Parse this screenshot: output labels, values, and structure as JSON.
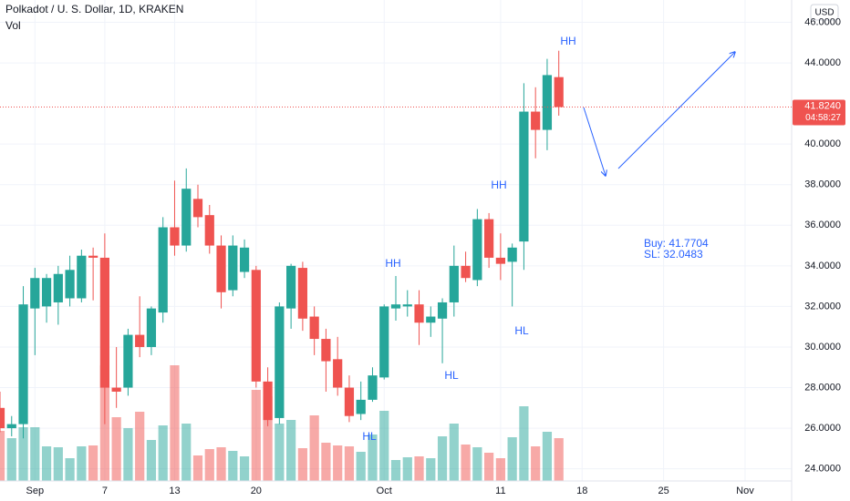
{
  "chart_data": {
    "type": "candlestick",
    "title": "Polkadot / U. S. Dollar, 1D, KRAKEN",
    "volume_label": "Vol",
    "currency": "USD",
    "up_color": "#26a69a",
    "down_color": "#ef5350",
    "x": [
      "08-29",
      "08-30",
      "08-31",
      "09-01",
      "09-02",
      "09-03",
      "09-04",
      "09-05",
      "09-06",
      "09-07",
      "09-08",
      "09-09",
      "09-10",
      "09-11",
      "09-12",
      "09-13",
      "09-14",
      "09-15",
      "09-16",
      "09-17",
      "09-18",
      "09-19",
      "09-20",
      "09-21",
      "09-22",
      "09-23",
      "09-24",
      "09-25",
      "09-26",
      "09-27",
      "09-28",
      "09-29",
      "09-30",
      "10-01",
      "10-02",
      "10-03",
      "10-04",
      "10-05",
      "10-06",
      "10-07",
      "10-08",
      "10-09",
      "10-10",
      "10-11",
      "10-12",
      "10-13",
      "10-14",
      "10-15",
      "10-16"
    ],
    "open": [
      27.0,
      26.0,
      26.2,
      31.9,
      32.0,
      32.2,
      32.4,
      32.4,
      34.5,
      34.4,
      28.0,
      28.0,
      30.6,
      30.0,
      31.7,
      35.9,
      35.0,
      37.3,
      36.5,
      35.0,
      32.8,
      33.7,
      33.8,
      28.3,
      26.5,
      31.9,
      33.9,
      31.5,
      30.4,
      29.4,
      28.0,
      26.7,
      27.4,
      28.5,
      31.9,
      32.0,
      32.1,
      31.2,
      31.4,
      32.2,
      34.0,
      33.3,
      36.3,
      34.4,
      34.2,
      35.2,
      41.6,
      40.7,
      43.3
    ],
    "high": [
      27.8,
      26.6,
      33.0,
      33.9,
      33.6,
      34.0,
      34.5,
      34.8,
      34.9,
      35.6,
      30.0,
      30.9,
      32.5,
      32.0,
      36.4,
      38.2,
      38.8,
      38.0,
      37.0,
      35.5,
      35.5,
      35.3,
      34.0,
      29.0,
      32.2,
      34.1,
      34.2,
      32.0,
      30.9,
      30.5,
      28.6,
      28.3,
      29.0,
      32.1,
      33.5,
      32.8,
      32.8,
      32.0,
      32.4,
      35.0,
      34.7,
      36.8,
      36.6,
      35.6,
      35.1,
      43.0,
      42.8,
      44.2,
      44.6
    ],
    "low": [
      25.8,
      25.6,
      25.5,
      29.6,
      31.2,
      31.1,
      32.0,
      32.2,
      32.3,
      26.2,
      27.0,
      27.6,
      29.5,
      29.6,
      31.2,
      34.5,
      34.7,
      35.9,
      34.6,
      31.9,
      32.5,
      33.4,
      28.0,
      26.1,
      26.2,
      30.9,
      30.8,
      29.6,
      27.8,
      27.6,
      26.3,
      26.4,
      27.3,
      28.4,
      31.3,
      31.5,
      30.1,
      30.5,
      29.2,
      31.5,
      33.2,
      33.0,
      33.9,
      33.3,
      32.0,
      33.8,
      39.3,
      39.7,
      41.4
    ],
    "close": [
      26.0,
      26.2,
      32.1,
      33.4,
      33.4,
      33.6,
      33.8,
      34.5,
      34.4,
      28.0,
      27.8,
      30.6,
      30.0,
      31.9,
      35.9,
      35.0,
      37.8,
      36.4,
      35.0,
      32.7,
      35.0,
      34.9,
      28.3,
      26.4,
      32.0,
      34.0,
      31.4,
      30.4,
      29.3,
      28.0,
      26.6,
      27.4,
      28.6,
      32.0,
      32.1,
      32.1,
      31.2,
      31.5,
      32.2,
      34.0,
      33.4,
      36.3,
      34.4,
      34.1,
      34.9,
      41.6,
      40.7,
      43.4,
      41.824
    ],
    "volume": [
      55,
      47,
      59,
      59,
      38,
      37,
      25,
      38,
      39,
      127,
      70,
      58,
      76,
      45,
      61,
      127,
      63,
      28,
      35,
      37,
      33,
      27,
      100,
      93,
      63,
      67,
      36,
      72,
      42,
      39,
      38,
      32,
      51,
      77,
      23,
      26,
      27,
      25,
      49,
      63,
      40,
      37,
      31,
      25,
      48,
      82,
      38,
      54,
      47
    ],
    "xlim": [
      "08-29",
      "11-05"
    ],
    "xticks": [
      {
        "value": "09-01",
        "label": "Sep"
      },
      {
        "value": "09-07",
        "label": "7"
      },
      {
        "value": "09-13",
        "label": "13"
      },
      {
        "value": "09-20",
        "label": "20"
      },
      {
        "value": "10-01",
        "label": "Oct"
      },
      {
        "value": "10-11",
        "label": "11"
      },
      {
        "value": "10-18",
        "label": "18"
      },
      {
        "value": "10-25",
        "label": "25"
      },
      {
        "value": "11-01",
        "label": "Nov"
      }
    ],
    "ylim": [
      23.4,
      47.1
    ],
    "yticks": [
      {
        "value": 24,
        "label": "24.0000"
      },
      {
        "value": 26,
        "label": "26.0000"
      },
      {
        "value": 28,
        "label": "28.0000"
      },
      {
        "value": 30,
        "label": "30.0000"
      },
      {
        "value": 32,
        "label": "32.0000"
      },
      {
        "value": 34,
        "label": "34.0000"
      },
      {
        "value": 36,
        "label": "36.0000"
      },
      {
        "value": 38,
        "label": "38.0000"
      },
      {
        "value": 40,
        "label": "40.0000"
      },
      {
        "value": 44,
        "label": "44.0000"
      },
      {
        "value": 46,
        "label": "46.0000"
      }
    ],
    "grid": true,
    "last_price": {
      "value": 41.824,
      "label": "41.8240"
    },
    "countdown": "04:58:27",
    "annotations": [
      "HH",
      "HH",
      "HH",
      "HL",
      "HL",
      "HL",
      "Buy: 41.7704",
      "SL: 32.0483"
    ]
  }
}
